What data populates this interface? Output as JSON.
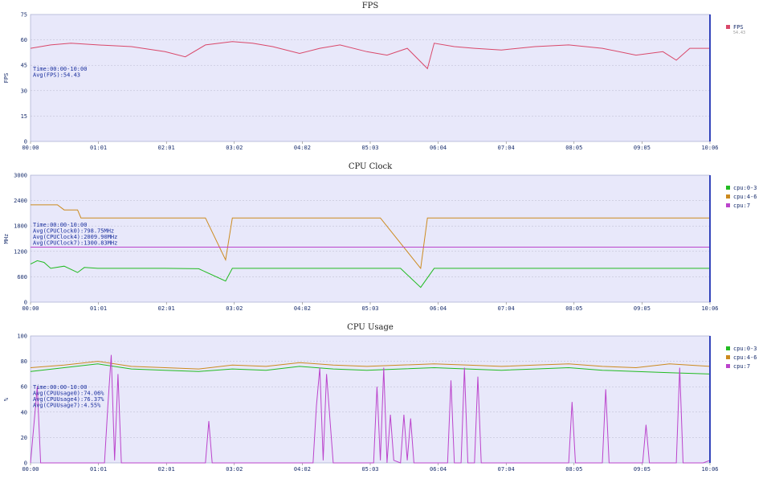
{
  "chart_data": [
    {
      "type": "line",
      "title": "FPS",
      "ylabel": "FPS",
      "xlabel": "",
      "ylim": [
        0,
        75
      ],
      "yticks": [
        0,
        15,
        30,
        45,
        60,
        75
      ],
      "x_tick_labels": [
        "00:00",
        "01:01",
        "02:01",
        "03:02",
        "04:02",
        "05:03",
        "06:04",
        "07:04",
        "08:05",
        "09:05",
        "10:06"
      ],
      "grid": true,
      "legend_position": "right",
      "annotation": [
        "Time:00:00-10:00",
        "Avg(FPS):54.43"
      ],
      "series": [
        {
          "name": "FPS",
          "color": "#d9486a",
          "legend_subtext": "54.43",
          "x": [
            0,
            0.3,
            0.6,
            1.0,
            1.5,
            2.0,
            2.3,
            2.6,
            3.0,
            3.3,
            3.6,
            4.0,
            4.3,
            4.6,
            5.0,
            5.3,
            5.6,
            5.9,
            6.0,
            6.3,
            6.6,
            7.0,
            7.5,
            8.0,
            8.5,
            9.0,
            9.4,
            9.6,
            9.8,
            10.1
          ],
          "values": [
            55,
            57,
            58,
            57,
            56,
            53,
            50,
            57,
            59,
            58,
            56,
            52,
            55,
            57,
            53,
            51,
            55,
            43,
            58,
            56,
            55,
            54,
            56,
            57,
            55,
            51,
            53,
            48,
            55,
            55
          ]
        }
      ]
    },
    {
      "type": "line",
      "title": "CPU Clock",
      "ylabel": "MHz",
      "xlabel": "",
      "ylim": [
        0,
        3000
      ],
      "yticks": [
        0,
        600,
        1200,
        1800,
        2400,
        3000
      ],
      "x_tick_labels": [
        "00:00",
        "01:01",
        "02:01",
        "03:02",
        "04:02",
        "05:03",
        "06:04",
        "07:04",
        "08:05",
        "09:05",
        "10:06"
      ],
      "grid": true,
      "legend_position": "right",
      "annotation": [
        "Time:00:00-10:00",
        "Avg(CPUClock0):798.75MHz",
        "Avg(CPUClock4):2009.90MHz",
        "Avg(CPUClock7):1300.83MHz"
      ],
      "series": [
        {
          "name": "cpu:0-3",
          "color": "#22bb22",
          "x": [
            0,
            0.1,
            0.2,
            0.3,
            0.5,
            0.7,
            0.8,
            1.0,
            1.5,
            2.0,
            2.5,
            2.9,
            3.0,
            3.5,
            4.0,
            4.5,
            5.0,
            5.5,
            5.8,
            6.0,
            6.5,
            7.0,
            7.5,
            8.0,
            8.5,
            9.0,
            9.5,
            10.1
          ],
          "values": [
            900,
            980,
            940,
            800,
            850,
            700,
            820,
            800,
            800,
            800,
            790,
            500,
            800,
            800,
            800,
            800,
            800,
            800,
            350,
            800,
            800,
            800,
            800,
            800,
            800,
            800,
            800,
            800
          ]
        },
        {
          "name": "cpu:4-6",
          "color": "#cc8a1e",
          "x": [
            0,
            0.4,
            0.5,
            0.7,
            0.75,
            1.0,
            2.6,
            2.9,
            3.0,
            3.6,
            5.2,
            5.8,
            5.9,
            7.2,
            10.1
          ],
          "values": [
            2300,
            2300,
            2180,
            2180,
            1990,
            1990,
            1990,
            1000,
            1990,
            1990,
            1990,
            800,
            1990,
            1990,
            1990
          ]
        },
        {
          "name": "cpu:7",
          "color": "#bb44cc",
          "x": [
            0,
            10.1
          ],
          "values": [
            1300,
            1300
          ]
        }
      ]
    },
    {
      "type": "line",
      "title": "CPU Usage",
      "ylabel": "%",
      "xlabel": "",
      "ylim": [
        0,
        100
      ],
      "yticks": [
        0,
        20,
        40,
        60,
        80,
        100
      ],
      "x_tick_labels": [
        "00:00",
        "01:01",
        "02:01",
        "03:02",
        "04:02",
        "05:03",
        "06:04",
        "07:04",
        "08:05",
        "09:05",
        "10:06"
      ],
      "grid": true,
      "legend_position": "right",
      "annotation": [
        "Time:00:00-10:00",
        "Avg(CPUUsage0):74.06%",
        "Avg(CPUUsage4):76.37%",
        "Avg(CPUUsage7):4.55%"
      ],
      "series": [
        {
          "name": "cpu:0-3",
          "color": "#22bb22",
          "x": [
            0,
            0.5,
            1.0,
            1.5,
            2.0,
            2.5,
            3.0,
            3.5,
            4.0,
            4.5,
            5.0,
            5.5,
            6.0,
            6.5,
            7.0,
            7.5,
            8.0,
            8.5,
            9.0,
            9.5,
            10.1
          ],
          "values": [
            72,
            75,
            78,
            74,
            73,
            72,
            74,
            73,
            76,
            74,
            73,
            74,
            75,
            74,
            73,
            74,
            75,
            73,
            72,
            71,
            70
          ]
        },
        {
          "name": "cpu:4-6",
          "color": "#cc8a1e",
          "x": [
            0,
            0.5,
            1.0,
            1.5,
            2.0,
            2.5,
            3.0,
            3.5,
            4.0,
            4.5,
            5.0,
            5.5,
            6.0,
            6.5,
            7.0,
            7.5,
            8.0,
            8.5,
            9.0,
            9.5,
            10.1
          ],
          "values": [
            75,
            77,
            80,
            76,
            75,
            74,
            77,
            76,
            79,
            77,
            76,
            77,
            78,
            77,
            76,
            77,
            78,
            76,
            75,
            78,
            76
          ]
        },
        {
          "name": "cpu:7",
          "color": "#bb44cc",
          "x": [
            0,
            0.1,
            0.15,
            0.3,
            1.1,
            1.15,
            1.2,
            1.25,
            1.3,
            1.35,
            1.4,
            2.0,
            2.6,
            2.65,
            2.7,
            3.8,
            4.2,
            4.25,
            4.3,
            4.35,
            4.4,
            4.5,
            5.1,
            5.15,
            5.2,
            5.25,
            5.3,
            5.35,
            5.4,
            5.5,
            5.55,
            5.6,
            5.65,
            5.7,
            5.75,
            6.2,
            6.25,
            6.3,
            6.4,
            6.45,
            6.5,
            6.6,
            6.65,
            6.7,
            7.0,
            8.0,
            8.05,
            8.1,
            8.5,
            8.55,
            8.6,
            9.1,
            9.15,
            9.2,
            9.6,
            9.65,
            9.7,
            10.0,
            10.1
          ],
          "values": [
            0,
            60,
            0,
            0,
            0,
            45,
            85,
            2,
            70,
            0,
            0,
            0,
            0,
            33,
            0,
            0,
            0,
            45,
            75,
            2,
            70,
            0,
            0,
            60,
            2,
            75,
            0,
            38,
            2,
            0,
            38,
            2,
            35,
            0,
            0,
            0,
            65,
            0,
            0,
            75,
            0,
            0,
            68,
            0,
            0,
            0,
            48,
            0,
            0,
            58,
            0,
            0,
            30,
            0,
            0,
            75,
            0,
            0,
            2
          ]
        }
      ]
    }
  ]
}
